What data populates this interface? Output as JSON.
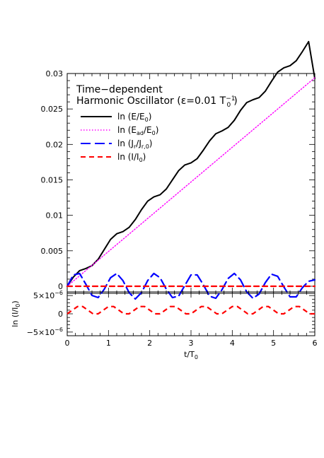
{
  "chart_data": [
    {
      "type": "line",
      "title": "Time−dependent",
      "subtitle": "Harmonic Oscillator (ε=0.01 T",
      "subtitle_sup": "−1",
      "subtitle_sub": "0",
      "subtitle_end": ")",
      "xlim": [
        0,
        6
      ],
      "ylim": [
        -0.001,
        0.03
      ],
      "yticks": [
        {
          "v": 0,
          "label": "0"
        },
        {
          "v": 0.005,
          "label": "0.005"
        },
        {
          "v": 0.01,
          "label": "0.01"
        },
        {
          "v": 0.015,
          "label": "0.015"
        },
        {
          "v": 0.02,
          "label": "0.02"
        },
        {
          "v": 0.025,
          "label": "0.025"
        },
        {
          "v": 0.03,
          "label": "0.03"
        }
      ],
      "legend_position": "top-left",
      "legend": [
        {
          "base": "ln (E/E",
          "sub": "0",
          "tail": ")",
          "color": "#000000",
          "dash": "solid"
        },
        {
          "base": "ln (E",
          "sub": "ad",
          "mid": "/E",
          "sub2": "0",
          "tail": ")",
          "color": "#ff00ff",
          "dash": "dotted"
        },
        {
          "base": "ln (J",
          "sub": "r",
          "mid": "/J",
          "sub2": "r,0",
          "tail": ")",
          "color": "#0000ff",
          "dash": "long-dash"
        },
        {
          "base": "ln (I/I",
          "sub": "0",
          "tail": ")",
          "color": "#ff0000",
          "dash": "short-dash"
        }
      ],
      "series": [
        {
          "color": "#000000",
          "x": [
            0,
            0.15,
            0.3,
            0.45,
            0.6,
            0.75,
            0.9,
            1.05,
            1.2,
            1.35,
            1.5,
            1.65,
            1.8,
            1.95,
            2.1,
            2.25,
            2.4,
            2.55,
            2.7,
            2.85,
            3.0,
            3.15,
            3.3,
            3.45,
            3.6,
            3.75,
            3.9,
            4.05,
            4.2,
            4.35,
            4.5,
            4.65,
            4.8,
            4.95,
            5.1,
            5.25,
            5.4,
            5.55,
            5.7,
            5.85,
            6.0
          ],
          "y": [
            0,
            0.0013,
            0.0022,
            0.0025,
            0.0029,
            0.0038,
            0.0052,
            0.0066,
            0.0074,
            0.0077,
            0.0083,
            0.0094,
            0.0108,
            0.012,
            0.0126,
            0.0129,
            0.0137,
            0.015,
            0.0163,
            0.0171,
            0.0174,
            0.018,
            0.0192,
            0.0205,
            0.0215,
            0.0219,
            0.0224,
            0.0234,
            0.0248,
            0.0259,
            0.0263,
            0.0266,
            0.0275,
            0.0289,
            0.0302,
            0.0308,
            0.0311,
            0.0318,
            0.0331,
            0.0345,
            0.0293
          ]
        },
        {
          "color": "#ff00ff",
          "x": [
            0,
            1,
            2,
            3,
            4,
            5,
            6
          ],
          "y": [
            0,
            0.0049,
            0.0098,
            0.0147,
            0.0196,
            0.0245,
            0.0294
          ]
        },
        {
          "color": "#0000ff",
          "x": [
            0,
            0.15,
            0.3,
            0.45,
            0.6,
            0.75,
            0.9,
            1.05,
            1.2,
            1.35,
            1.5,
            1.65,
            1.8,
            1.95,
            2.1,
            2.25,
            2.4,
            2.55,
            2.7,
            2.85,
            3.0,
            3.15,
            3.3,
            3.45,
            3.6,
            3.75,
            3.9,
            4.05,
            4.2,
            4.35,
            4.5,
            4.65,
            4.8,
            4.95,
            5.1,
            5.25,
            5.4,
            5.55,
            5.7,
            5.85,
            6.0
          ],
          "y": [
            0,
            0.0016,
            0.0018,
            0.0003,
            -0.0013,
            -0.0016,
            -0.0004,
            0.0012,
            0.0018,
            0.0008,
            -0.0009,
            -0.0018,
            -0.0009,
            0.0008,
            0.0018,
            0.0012,
            -0.0004,
            -0.0016,
            -0.0014,
            0.0001,
            0.0016,
            0.0016,
            0.0002,
            -0.0014,
            -0.0017,
            -0.0005,
            0.0011,
            0.0018,
            0.0009,
            -0.0008,
            -0.0017,
            -0.0011,
            0.0005,
            0.0017,
            0.0014,
            -0.0001,
            -0.0015,
            -0.0015,
            -0.0002,
            0.0007,
            0.0009
          ]
        },
        {
          "color": "#ff0000",
          "x": [
            0,
            6
          ],
          "y": [
            0,
            0
          ]
        }
      ]
    },
    {
      "type": "line",
      "xlabel": "t/T",
      "xlabel_sub": "0",
      "ylabel": "ln (I/I",
      "ylabel_sub": "0",
      "ylabel_end": ")",
      "xlim": [
        0,
        6
      ],
      "ylim": [
        -6e-06,
        6e-06
      ],
      "xticks": [
        {
          "v": 0,
          "label": "0"
        },
        {
          "v": 1,
          "label": "1"
        },
        {
          "v": 2,
          "label": "2"
        },
        {
          "v": 3,
          "label": "3"
        },
        {
          "v": 4,
          "label": "4"
        },
        {
          "v": 5,
          "label": "5"
        },
        {
          "v": 6,
          "label": "6"
        }
      ],
      "yticks": [
        {
          "v": 5e-06,
          "label": "5×10",
          "exp": "−6"
        },
        {
          "v": 0,
          "label": "0",
          "exp": ""
        },
        {
          "v": -5e-06,
          "label": "−5×10",
          "exp": "−6"
        }
      ],
      "series": [
        {
          "color": "#ff0000",
          "x": [
            0,
            0.125,
            0.25,
            0.375,
            0.5,
            0.625,
            0.75,
            0.875,
            1.0,
            1.125,
            1.25,
            1.375,
            1.5,
            1.625,
            1.75,
            1.875,
            2.0,
            2.125,
            2.25,
            2.375,
            2.5,
            2.625,
            2.75,
            2.875,
            3.0,
            3.125,
            3.25,
            3.375,
            3.5,
            3.625,
            3.75,
            3.875,
            4.0,
            4.125,
            4.25,
            4.375,
            4.5,
            4.625,
            4.75,
            4.875,
            5.0,
            5.125,
            5.25,
            5.375,
            5.5,
            5.625,
            5.75,
            5.875,
            6.0
          ],
          "y": [
            0,
            1e-06,
            2e-06,
            2e-06,
            1e-06,
            0,
            0,
            1e-06,
            2e-06,
            2e-06,
            1e-06,
            0,
            0,
            1e-06,
            2e-06,
            2e-06,
            1e-06,
            0,
            0,
            1e-06,
            2e-06,
            2e-06,
            1e-06,
            0,
            0,
            1e-06,
            2e-06,
            2e-06,
            1e-06,
            0,
            0,
            1e-06,
            2e-06,
            2e-06,
            1e-06,
            0,
            0,
            1e-06,
            2e-06,
            2e-06,
            1e-06,
            0,
            0,
            1e-06,
            2e-06,
            2e-06,
            1e-06,
            0,
            0
          ]
        }
      ]
    }
  ]
}
